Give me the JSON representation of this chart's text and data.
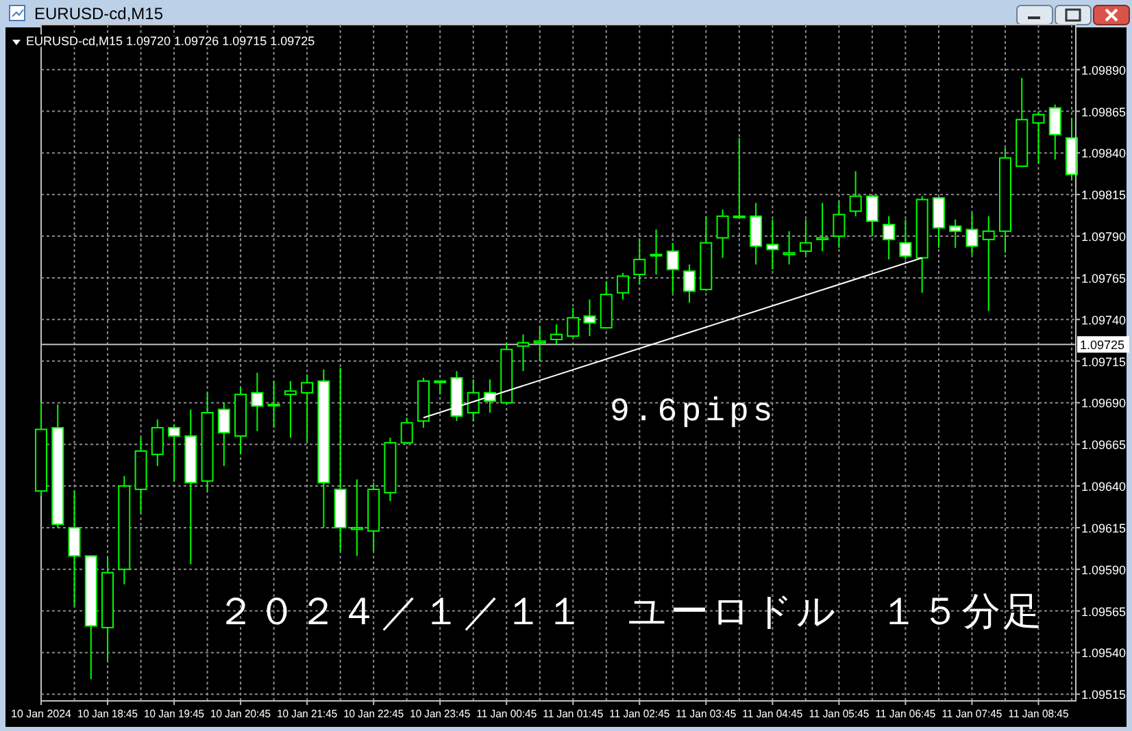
{
  "chart_data": {
    "type": "candlestick",
    "title": "EURUSD-cd,M15",
    "subtitle": "EURUSD-cd,M15  1.09720 1.09726 1.09715 1.09725",
    "annotations": [
      "9.6pips",
      "２０２４／１／１１　ユーロドル　１５分足"
    ],
    "categories": [
      "10 Jan 2024",
      null,
      null,
      null,
      "10 Jan 18:45",
      null,
      null,
      null,
      "10 Jan 19:45",
      null,
      null,
      null,
      "10 Jan 20:45",
      null,
      null,
      null,
      "10 Jan 21:45",
      null,
      null,
      null,
      "10 Jan 22:45",
      null,
      null,
      null,
      "10 Jan 23:45",
      null,
      null,
      null,
      "11 Jan 00:45",
      null,
      null,
      null,
      "11 Jan 01:45",
      null,
      null,
      null,
      "11 Jan 02:45",
      null,
      null,
      null,
      "11 Jan 03:45",
      null,
      null,
      null,
      "11 Jan 04:45",
      null,
      null,
      null,
      "11 Jan 05:45",
      null,
      null,
      null,
      "11 Jan 06:45",
      null,
      null,
      null,
      "11 Jan 07:45",
      null,
      null,
      null,
      "11 Jan 08:45",
      null,
      null
    ],
    "color": "#00ff00",
    "ohlc": [
      [
        1.09637,
        1.0969,
        1.09634,
        1.09674
      ],
      [
        1.09675,
        1.09689,
        1.09615,
        1.09617
      ],
      [
        1.09615,
        1.09637,
        1.09568,
        1.09598
      ],
      [
        1.09598,
        1.09598,
        1.09524,
        1.09556
      ],
      [
        1.09555,
        1.09597,
        1.09535,
        1.09588
      ],
      [
        1.0959,
        1.09646,
        1.09581,
        1.0964
      ],
      [
        1.09638,
        1.09669,
        1.09624,
        1.09661
      ],
      [
        1.09659,
        1.0968,
        1.09652,
        1.09675
      ],
      [
        1.09675,
        1.09677,
        1.09643,
        1.0967
      ],
      [
        1.0967,
        1.09686,
        1.09593,
        1.09642
      ],
      [
        1.09643,
        1.09696,
        1.09637,
        1.09684
      ],
      [
        1.09686,
        1.0969,
        1.09652,
        1.09672
      ],
      [
        1.0967,
        1.09699,
        1.09659,
        1.09695
      ],
      [
        1.09696,
        1.09708,
        1.09673,
        1.09688
      ],
      [
        1.09689,
        1.09703,
        1.09675,
        1.09689
      ],
      [
        1.09695,
        1.09703,
        1.09669,
        1.09697
      ],
      [
        1.09696,
        1.09707,
        1.09667,
        1.09702
      ],
      [
        1.09703,
        1.0971,
        1.09615,
        1.09642
      ],
      [
        1.09638,
        1.09711,
        1.09601,
        1.09615
      ],
      [
        1.09614,
        1.09644,
        1.09598,
        1.09615
      ],
      [
        1.09613,
        1.09642,
        1.09601,
        1.09638
      ],
      [
        1.09636,
        1.09669,
        1.09631,
        1.09666
      ],
      [
        1.09666,
        1.09681,
        1.09665,
        1.09678
      ],
      [
        1.09679,
        1.09705,
        1.09675,
        1.09703
      ],
      [
        1.09703,
        1.09703,
        1.09695,
        1.09703
      ],
      [
        1.09705,
        1.09709,
        1.09679,
        1.09682
      ],
      [
        1.09684,
        1.09704,
        1.09679,
        1.09696
      ],
      [
        1.09696,
        1.09704,
        1.09684,
        1.09691
      ],
      [
        1.0969,
        1.09726,
        1.09689,
        1.09722
      ],
      [
        1.09724,
        1.09731,
        1.09709,
        1.09726
      ],
      [
        1.09726,
        1.09736,
        1.09715,
        1.09727
      ],
      [
        1.09728,
        1.09737,
        1.09725,
        1.09731
      ],
      [
        1.0973,
        1.09747,
        1.0973,
        1.09741
      ],
      [
        1.09742,
        1.09752,
        1.0973,
        1.09738
      ],
      [
        1.09735,
        1.09763,
        1.09735,
        1.09755
      ],
      [
        1.09756,
        1.09768,
        1.09752,
        1.09766
      ],
      [
        1.09767,
        1.09788,
        1.09761,
        1.09776
      ],
      [
        1.09779,
        1.09794,
        1.09767,
        1.09779
      ],
      [
        1.09781,
        1.09786,
        1.09756,
        1.0977
      ],
      [
        1.09769,
        1.09773,
        1.0975,
        1.09757
      ],
      [
        1.09758,
        1.09802,
        1.09757,
        1.09786
      ],
      [
        1.09789,
        1.09806,
        1.09777,
        1.09802
      ],
      [
        1.09802,
        1.09849,
        1.09802,
        1.09802
      ],
      [
        1.09802,
        1.0981,
        1.09773,
        1.09784
      ],
      [
        1.09785,
        1.098,
        1.0977,
        1.09782
      ],
      [
        1.09779,
        1.09793,
        1.09773,
        1.0978
      ],
      [
        1.09781,
        1.098,
        1.09779,
        1.09786
      ],
      [
        1.09788,
        1.0981,
        1.09781,
        1.09789
      ],
      [
        1.0979,
        1.09811,
        1.09783,
        1.09803
      ],
      [
        1.09805,
        1.09829,
        1.09802,
        1.09814
      ],
      [
        1.09814,
        1.09814,
        1.0979,
        1.09799
      ],
      [
        1.09797,
        1.09802,
        1.09776,
        1.09788
      ],
      [
        1.09786,
        1.098,
        1.09776,
        1.09778
      ],
      [
        1.09777,
        1.09814,
        1.09756,
        1.09812
      ],
      [
        1.09813,
        1.09813,
        1.09783,
        1.09795
      ],
      [
        1.09796,
        1.098,
        1.09783,
        1.09793
      ],
      [
        1.09794,
        1.09804,
        1.09779,
        1.09784
      ],
      [
        1.09788,
        1.09802,
        1.09745,
        1.09793
      ],
      [
        1.09793,
        1.09843,
        1.0978,
        1.09837
      ],
      [
        1.09832,
        1.09885,
        1.09832,
        1.0986
      ],
      [
        1.09858,
        1.09865,
        1.09834,
        1.09863
      ],
      [
        1.09867,
        1.09869,
        1.09836,
        1.09851
      ],
      [
        1.09849,
        1.09861,
        1.09824,
        1.09827
      ]
    ],
    "series": [
      {
        "type": "line",
        "color": "#ffffff",
        "values": [
          null,
          null,
          null,
          null,
          null,
          null,
          null,
          null,
          null,
          null,
          null,
          null,
          null,
          null,
          null,
          null,
          null,
          null,
          null,
          null,
          null,
          null,
          null,
          1.09681,
          null,
          null,
          null,
          null,
          null,
          null,
          null,
          null,
          null,
          null,
          null,
          null,
          null,
          null,
          null,
          null,
          null,
          null,
          null,
          null,
          null,
          null,
          null,
          null,
          null,
          null,
          null,
          null,
          null,
          1.09777,
          null,
          null,
          null,
          null,
          null,
          null,
          null,
          null,
          null
        ]
      }
    ],
    "ylim": [
      1.09511,
      1.09917
    ],
    "yticks": [
      {
        "value": 1.09515,
        "label": "1.09515"
      },
      {
        "value": 1.0954,
        "label": "1.09540"
      },
      {
        "value": 1.09565,
        "label": "1.09565"
      },
      {
        "value": 1.0959,
        "label": "1.09590"
      },
      {
        "value": 1.09615,
        "label": "1.09615"
      },
      {
        "value": 1.0964,
        "label": "1.09640"
      },
      {
        "value": 1.09665,
        "label": "1.09665"
      },
      {
        "value": 1.0969,
        "label": "1.09690"
      },
      {
        "value": 1.09715,
        "label": "1.09715"
      },
      {
        "value": 1.0974,
        "label": "1.09740"
      },
      {
        "value": 1.09765,
        "label": "1.09765"
      },
      {
        "value": 1.0979,
        "label": "1.09790"
      },
      {
        "value": 1.09815,
        "label": "1.09815"
      },
      {
        "value": 1.0984,
        "label": "1.09840"
      },
      {
        "value": 1.09865,
        "label": "1.09865"
      },
      {
        "value": 1.0989,
        "label": "1.09890"
      }
    ],
    "ref_lines": [
      {
        "axis": "y",
        "value": 1.09725,
        "label": "1.09725",
        "color": "#c0c0c0"
      }
    ],
    "grid": true
  }
}
